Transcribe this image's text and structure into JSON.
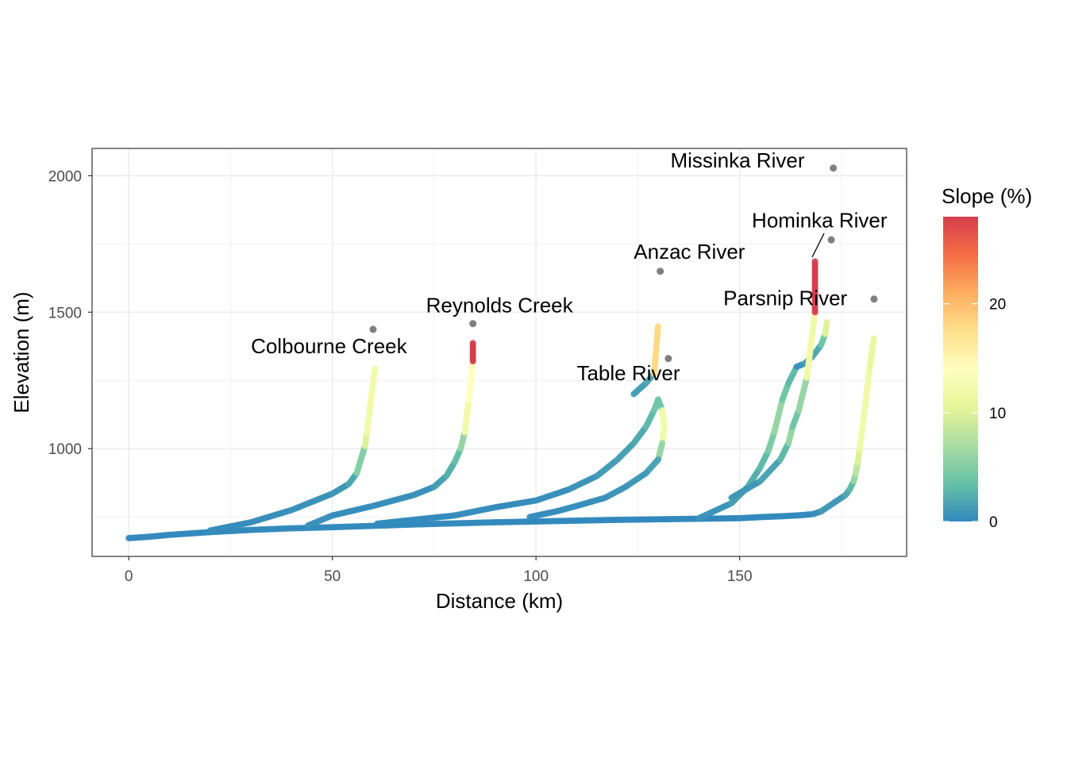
{
  "chart_data": {
    "type": "scatter",
    "title": "",
    "xlabel": "Distance (km)",
    "ylabel": "Elevation (m)",
    "xlim": [
      -9,
      191
    ],
    "ylim": [
      605,
      2100
    ],
    "x_ticks": [
      0,
      50,
      100,
      150
    ],
    "y_ticks": [
      1000,
      1500,
      2000
    ],
    "grid": true,
    "legend": {
      "title": "Slope (%)",
      "position": "right",
      "type": "colorbar",
      "range": [
        0,
        28
      ],
      "ticks": [
        0,
        10,
        20
      ],
      "colors": [
        "#3288bd",
        "#66c2a5",
        "#abdda4",
        "#e6f598",
        "#ffffbf",
        "#fee08b",
        "#fdae61",
        "#f46d43",
        "#d53e4f"
      ]
    },
    "na_color": "#7f7f7f",
    "mainstem": [
      [
        0,
        672
      ],
      [
        5,
        677
      ],
      [
        10,
        684
      ],
      [
        20,
        694
      ],
      [
        30,
        702
      ],
      [
        40,
        708
      ],
      [
        50,
        712
      ],
      [
        60,
        717
      ],
      [
        70,
        722
      ],
      [
        80,
        726
      ],
      [
        90,
        730
      ],
      [
        100,
        733
      ],
      [
        110,
        736
      ],
      [
        120,
        739
      ],
      [
        130,
        741
      ],
      [
        140,
        743
      ],
      [
        150,
        745
      ],
      [
        155,
        749
      ],
      [
        160,
        752
      ],
      [
        165,
        756
      ],
      [
        168,
        760
      ],
      [
        170,
        770
      ],
      [
        172,
        790
      ],
      [
        174,
        810
      ],
      [
        176,
        830
      ],
      [
        177,
        850
      ],
      [
        178,
        880
      ],
      [
        178.5,
        910
      ],
      [
        179,
        950
      ]
    ],
    "rivers": [
      {
        "name": "Colbourne Creek",
        "label_at": [
          30,
          1350
        ],
        "end": [
          60,
          1437
        ],
        "path": [
          [
            20,
            700
          ],
          [
            30,
            730
          ],
          [
            40,
            775
          ],
          [
            45,
            805
          ],
          [
            50,
            835
          ],
          [
            54,
            870
          ],
          [
            56,
            910
          ],
          [
            57,
            960
          ],
          [
            58,
            1010
          ],
          [
            58.5,
            1060
          ],
          [
            59,
            1120
          ],
          [
            59.5,
            1180
          ],
          [
            60,
            1240
          ],
          [
            60.5,
            1300
          ]
        ]
      },
      {
        "name": "Reynolds Creek",
        "label_at": [
          73,
          1500
        ],
        "end": [
          84.5,
          1458
        ],
        "path": [
          [
            44,
            718
          ],
          [
            50,
            755
          ],
          [
            60,
            790
          ],
          [
            70,
            830
          ],
          [
            75,
            860
          ],
          [
            78,
            900
          ],
          [
            80,
            950
          ],
          [
            81.5,
            1000
          ],
          [
            82.5,
            1060
          ],
          [
            83,
            1120
          ],
          [
            83.5,
            1180
          ],
          [
            84,
            1250
          ],
          [
            84.5,
            1320
          ],
          [
            84.5,
            1393
          ]
        ]
      },
      {
        "name": "Table River",
        "label_at": [
          110,
          1250
        ],
        "end": [
          132.5,
          1330
        ],
        "path": [
          [
            61,
            725
          ],
          [
            80,
            755
          ],
          [
            90,
            785
          ],
          [
            100,
            810
          ],
          [
            108,
            850
          ],
          [
            115,
            900
          ],
          [
            120,
            960
          ],
          [
            124,
            1020
          ],
          [
            127,
            1080
          ],
          [
            129,
            1140
          ],
          [
            130,
            1180
          ],
          [
            131,
            1140
          ],
          [
            131.5,
            1080
          ],
          [
            131,
            1020
          ],
          [
            130,
            960
          ],
          [
            127,
            910
          ],
          [
            122,
            860
          ],
          [
            117,
            820
          ],
          [
            110,
            790
          ],
          [
            105,
            770
          ],
          [
            98,
            748
          ]
        ]
      },
      {
        "name": "Anzac River",
        "label_at": [
          124,
          1695
        ],
        "end": [
          130.5,
          1650
        ],
        "path": [
          [
            124,
            1200
          ],
          [
            127,
            1240
          ],
          [
            129,
            1275
          ],
          [
            130,
            1455
          ]
        ]
      },
      {
        "name": "Parsnip River",
        "label_at": [
          146,
          1525
        ],
        "end": [
          183,
          1548
        ],
        "path": [
          [
            140,
            745
          ],
          [
            148,
            800
          ],
          [
            152,
            860
          ],
          [
            155,
            930
          ],
          [
            157,
            990
          ],
          [
            158.5,
            1060
          ],
          [
            159.5,
            1120
          ],
          [
            160.5,
            1180
          ],
          [
            162,
            1240
          ],
          [
            164,
            1300
          ],
          [
            166,
            1312
          ],
          [
            168,
            1340
          ],
          [
            170,
            1380
          ],
          [
            171,
            1420
          ],
          [
            171.5,
            1470
          ]
        ]
      },
      {
        "name": "Hominka River",
        "label_at": [
          153,
          1810
        ],
        "end": [
          172.5,
          1765
        ],
        "path": [
          [
            148,
            820
          ],
          [
            155,
            880
          ],
          [
            160,
            960
          ],
          [
            162,
            1020
          ],
          [
            163,
            1080
          ],
          [
            164.5,
            1140
          ],
          [
            165.5,
            1200
          ],
          [
            166.5,
            1260
          ],
          [
            167,
            1320
          ],
          [
            167.5,
            1380
          ],
          [
            168,
            1440
          ],
          [
            168.5,
            1500
          ],
          [
            168.5,
            1693
          ]
        ]
      },
      {
        "name": "Missinka River",
        "label_at": [
          133,
          2030
        ],
        "end": [
          173,
          2028
        ],
        "path": [
          [
            179,
            950
          ],
          [
            179.5,
            1000
          ],
          [
            180,
            1060
          ],
          [
            180.5,
            1120
          ],
          [
            181,
            1180
          ],
          [
            181.5,
            1240
          ],
          [
            182,
            1300
          ],
          [
            183,
            1410
          ]
        ]
      }
    ]
  }
}
